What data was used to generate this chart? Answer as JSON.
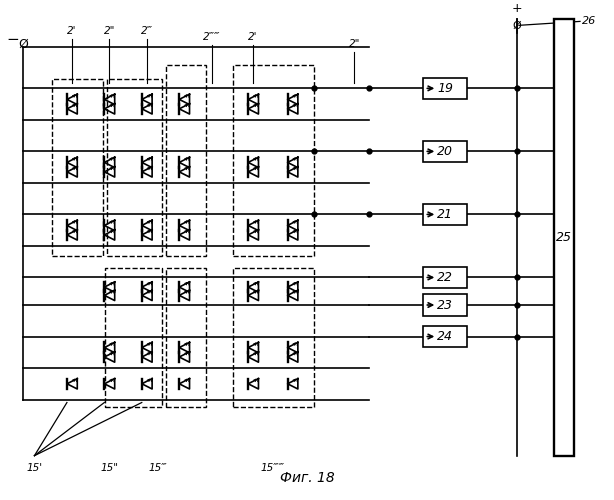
{
  "title": "Фиг. 18",
  "bg_color": "#ffffff",
  "line_color": "#000000",
  "text_color": "#000000",
  "fig_width": 6.14,
  "fig_height": 5.0,
  "dpi": 100,
  "boxes_right": [
    "19",
    "20",
    "21",
    "22",
    "23",
    "24"
  ],
  "bus_label": "25",
  "bus26_label": "26"
}
